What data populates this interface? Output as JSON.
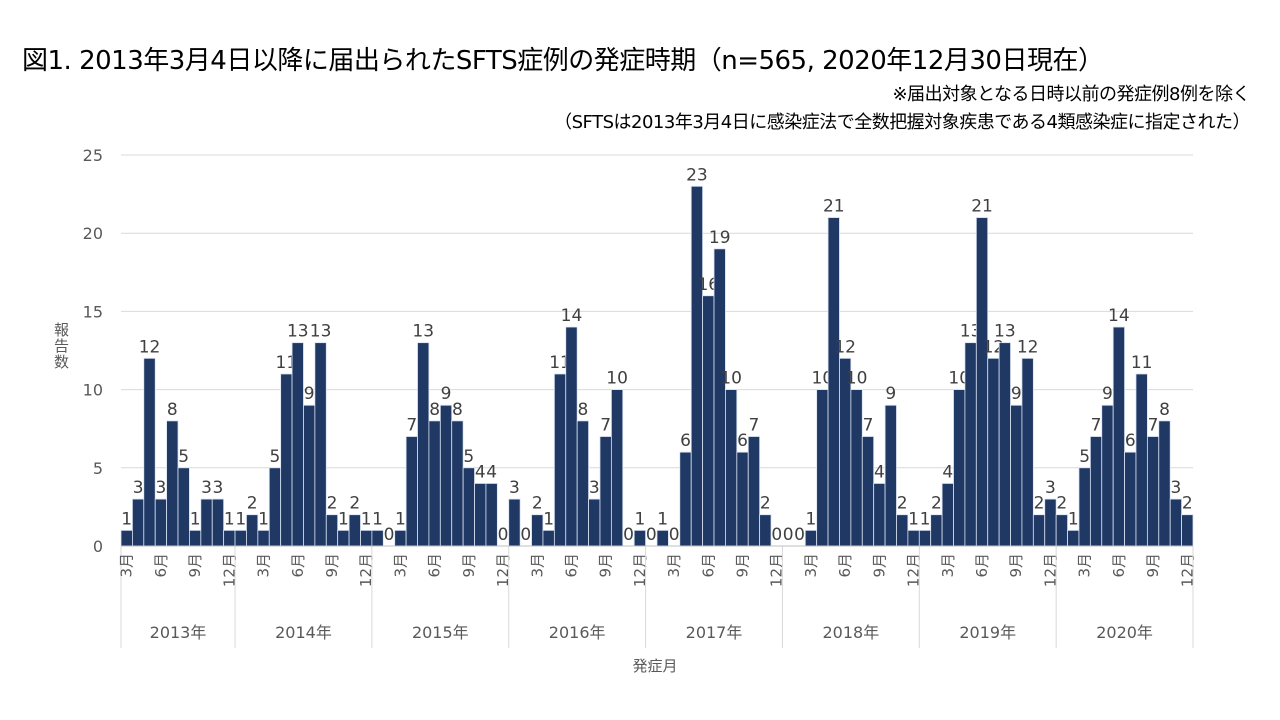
{
  "title": "図1.  2013年3月4日以降に届出られたSFTS症例の発症時期（n=565, 2020年12月30日現在）",
  "notes": [
    "※届出対象となる日時以前の発症例8例を除く",
    "（SFTSは2013年3月4日に感染症法で全数把握対象疾患である4類感染症に指定された）"
  ],
  "chart_data": {
    "type": "bar",
    "xlabel": "発症月",
    "ylabel": "報告数",
    "ylim": [
      0,
      25
    ],
    "yticks": [
      0,
      5,
      10,
      15,
      20,
      25
    ],
    "grid": true,
    "bar_color": "#203864",
    "month_tick_labels": [
      "3月",
      "6月",
      "9月",
      "12月"
    ],
    "years": [
      {
        "label": "2013年",
        "start_month": 3,
        "values": [
          1,
          3,
          12,
          3,
          8,
          5,
          1,
          3,
          3,
          1
        ]
      },
      {
        "label": "2014年",
        "start_month": 1,
        "values": [
          1,
          2,
          1,
          5,
          11,
          13,
          9,
          13,
          2,
          1,
          2,
          1
        ]
      },
      {
        "label": "2015年",
        "start_month": 1,
        "values": [
          1,
          0,
          1,
          7,
          13,
          8,
          9,
          8,
          5,
          4,
          4,
          0
        ]
      },
      {
        "label": "2016年",
        "start_month": 1,
        "values": [
          3,
          0,
          2,
          1,
          11,
          14,
          8,
          3,
          7,
          10,
          0,
          1
        ]
      },
      {
        "label": "2017年",
        "start_month": 1,
        "values": [
          0,
          1,
          0,
          6,
          23,
          16,
          19,
          10,
          6,
          7,
          2,
          0
        ]
      },
      {
        "label": "2018年",
        "start_month": 1,
        "values": [
          0,
          0,
          1,
          10,
          21,
          12,
          10,
          7,
          4,
          9,
          2,
          1
        ]
      },
      {
        "label": "2019年",
        "start_month": 1,
        "values": [
          1,
          2,
          4,
          10,
          13,
          21,
          12,
          13,
          9,
          12,
          2,
          3
        ]
      },
      {
        "label": "2020年",
        "start_month": 1,
        "values": [
          2,
          1,
          5,
          7,
          9,
          14,
          6,
          11,
          7,
          8,
          3,
          2
        ]
      }
    ]
  }
}
